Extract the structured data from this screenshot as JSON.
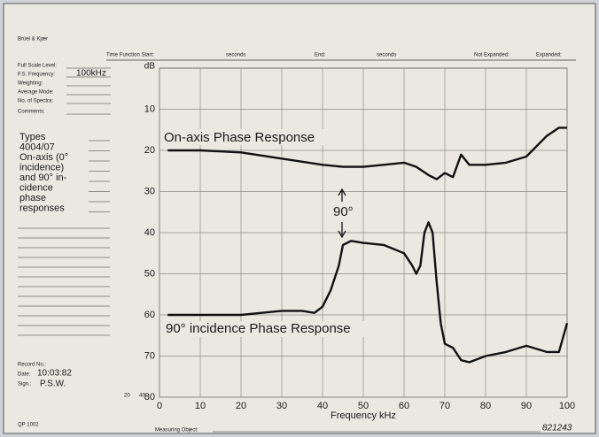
{
  "header": {
    "brand": "Brüel & Kjær",
    "time_start": "Time Function Start:",
    "seconds_1": "seconds",
    "end": "End:",
    "seconds_2": "seconds",
    "not_expanded": "Not Expanded:",
    "expanded": "Expanded:"
  },
  "form": {
    "fields": [
      {
        "label": "Full Scale Level:"
      },
      {
        "label": "F.S. Frequency:",
        "value": "100kHz"
      },
      {
        "label": "Weighting:"
      },
      {
        "label": "Average Mode:"
      },
      {
        "label": "No. of Spectra:"
      },
      {
        "label": "Comments:"
      }
    ],
    "comments": [
      "Types",
      "4004/07",
      "On-axis (0°",
      "incidence)",
      "and 90° in-",
      "cidence",
      "phase",
      "responses"
    ],
    "record_label": "Record No.:",
    "date_label": "Date:",
    "date": "10:03:82",
    "sign_label": "Sign.:",
    "sign": "P.S.W."
  },
  "footer": {
    "form_no": "QP 1002",
    "measuring_object": "Measuring Object:",
    "number": "821243",
    "scale_marks": [
      "20",
      "40"
    ]
  },
  "chart_data": {
    "type": "line",
    "y_label": "dB",
    "x_label": "Frequency kHz",
    "xlim": [
      0,
      100
    ],
    "xticks": [
      0,
      10,
      20,
      30,
      40,
      50,
      60,
      70,
      80,
      90,
      100
    ],
    "ylim": [
      0,
      80
    ],
    "y_inverted": true,
    "yticks": [
      10,
      20,
      30,
      40,
      50,
      60,
      70,
      80
    ],
    "grid": true,
    "series": [
      {
        "name": "On-axis Phase Response",
        "color": "#111111",
        "x": [
          2,
          10,
          20,
          30,
          40,
          45,
          50,
          55,
          60,
          63,
          66,
          68,
          70,
          72,
          74,
          76,
          80,
          85,
          90,
          95,
          98,
          100
        ],
        "values": [
          20,
          20,
          20.5,
          22,
          23.5,
          24,
          24,
          23.5,
          23,
          24,
          26,
          27,
          25.5,
          26.5,
          21,
          23.5,
          23.5,
          23,
          21.5,
          16.5,
          14.5,
          14.5
        ]
      },
      {
        "name": "90° incidence Phase Response",
        "color": "#111111",
        "x": [
          2,
          20,
          25,
          30,
          35,
          38,
          40,
          42,
          44,
          45,
          47,
          50,
          55,
          60,
          62,
          63,
          64,
          65,
          66,
          67,
          68,
          69,
          70,
          72,
          74,
          76,
          80,
          85,
          90,
          95,
          98,
          100
        ],
        "values": [
          60,
          60,
          59.5,
          59,
          59,
          59.5,
          58,
          54,
          48,
          43,
          42,
          42.5,
          43,
          45,
          48,
          50,
          48,
          40,
          37.5,
          40,
          52,
          62,
          67,
          68,
          71,
          71.5,
          70,
          69,
          67.5,
          69,
          69,
          62
        ]
      }
    ],
    "annotation": "90°"
  }
}
